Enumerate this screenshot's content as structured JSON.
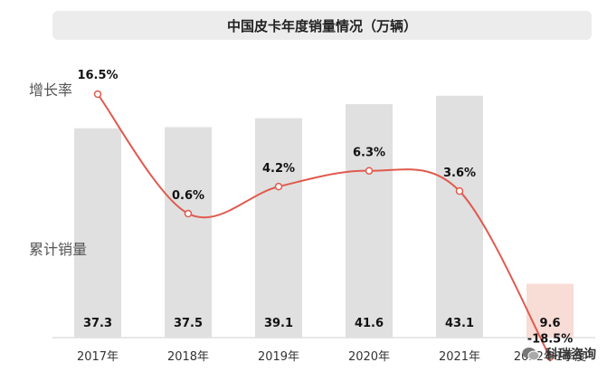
{
  "chart_data": {
    "type": "bar+line",
    "title": "中国皮卡年度销量情况（万辆）",
    "categories": [
      "2017年",
      "2018年",
      "2019年",
      "2020年",
      "2021年",
      "2022年1季度"
    ],
    "series": [
      {
        "name": "累计销量",
        "type": "bar",
        "values": [
          37.3,
          37.5,
          39.1,
          41.6,
          43.1,
          9.6
        ],
        "value_labels": [
          "37.3",
          "37.5",
          "39.1",
          "41.6",
          "43.1",
          "9.6"
        ]
      },
      {
        "name": "增长率",
        "type": "line",
        "values": [
          16.5,
          0.6,
          4.2,
          6.3,
          3.6,
          -18.5
        ],
        "value_labels": [
          "16.5%",
          "0.6%",
          "4.2%",
          "6.3%",
          "3.6%",
          "-18.5%"
        ]
      }
    ],
    "ylim": [
      0,
      50
    ],
    "line_ylim": [
      -25,
      20
    ],
    "grid": false,
    "colors": {
      "bar": "#e0e0e0",
      "bar_highlight": "#f8dcd6",
      "line": "#e05a4f"
    }
  },
  "footer": {
    "brand": "科瑞咨询"
  }
}
